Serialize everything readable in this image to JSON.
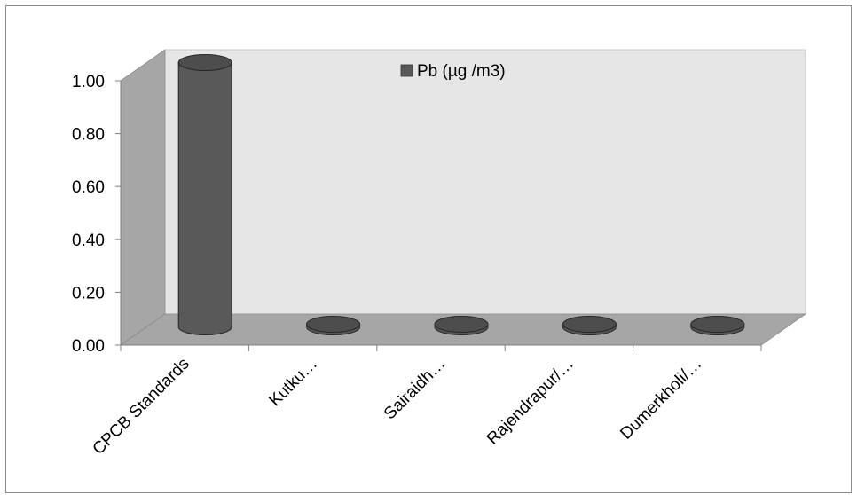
{
  "chart_data": {
    "type": "bar",
    "style": "3d-cylinder",
    "categories": [
      "CPCB Standards",
      "Kutku…",
      "Sairaidh…",
      "Rajendrapur/…",
      "Dumerkholi/…"
    ],
    "series": [
      {
        "name": "Pb (µg /m3)",
        "values": [
          1.0,
          0.0,
          0.0,
          0.0,
          0.0
        ],
        "color": "#595959"
      }
    ],
    "ylim": [
      0,
      1.0
    ],
    "yticks": [
      "0.00",
      "0.20",
      "0.40",
      "0.60",
      "0.80",
      "1.00"
    ],
    "ytick_values": [
      0,
      0.2,
      0.4,
      0.6,
      0.8,
      1.0
    ],
    "legend": "top-center",
    "colors": {
      "back_wall": "#e6e6e6",
      "side_wall": "#a6a6a6",
      "floor": "#a6a6a6",
      "bar": "#595959"
    }
  }
}
